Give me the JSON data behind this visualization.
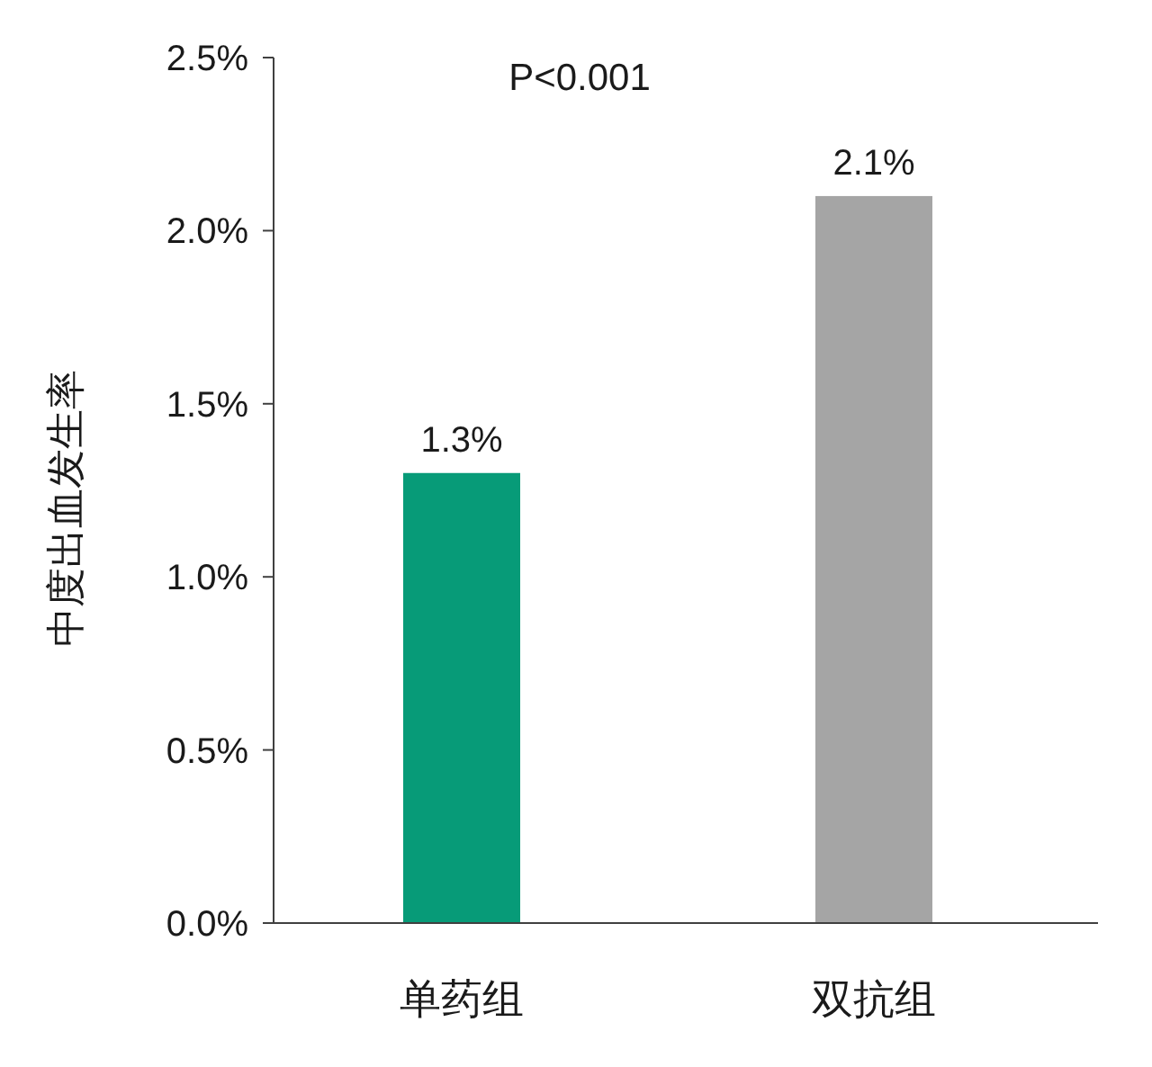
{
  "chart_data": {
    "type": "bar",
    "ylabel": "中度出血发生率",
    "categories": [
      "单药组",
      "双抗组"
    ],
    "values": [
      1.3,
      2.1
    ],
    "colors": [
      "#079b78",
      "#a5a5a5"
    ],
    "value_labels": [
      "1.3%",
      "2.1%"
    ],
    "ylim": [
      0,
      2.5
    ],
    "yticks": [
      {
        "value": 0,
        "label": "0.0%"
      },
      {
        "value": 0.5,
        "label": "0.5%"
      },
      {
        "value": 1,
        "label": "1.0%"
      },
      {
        "value": 1.5,
        "label": "1.5%"
      },
      {
        "value": 2,
        "label": "2.0%"
      },
      {
        "value": 2.5,
        "label": "2.5%"
      }
    ],
    "annotations": [
      "P<0.001"
    ],
    "grid": false
  }
}
